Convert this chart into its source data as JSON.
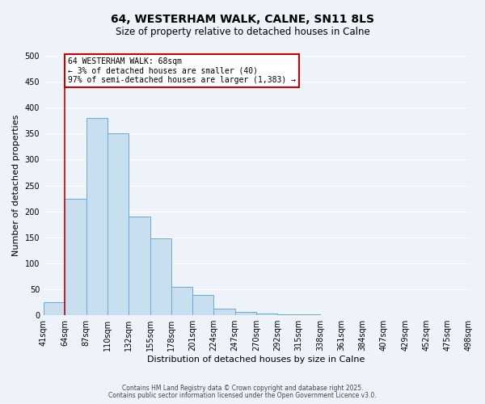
{
  "title": "64, WESTERHAM WALK, CALNE, SN11 8LS",
  "subtitle": "Size of property relative to detached houses in Calne",
  "xlabel": "Distribution of detached houses by size in Calne",
  "ylabel": "Number of detached properties",
  "bin_labels": [
    "41sqm",
    "64sqm",
    "87sqm",
    "110sqm",
    "132sqm",
    "155sqm",
    "178sqm",
    "201sqm",
    "224sqm",
    "247sqm",
    "270sqm",
    "292sqm",
    "315sqm",
    "338sqm",
    "361sqm",
    "384sqm",
    "407sqm",
    "429sqm",
    "452sqm",
    "475sqm",
    "498sqm"
  ],
  "bar_heights": [
    25,
    225,
    380,
    350,
    190,
    148,
    55,
    40,
    12,
    7,
    3,
    2,
    2,
    0,
    0,
    0,
    0,
    0,
    0,
    0
  ],
  "bar_color": "#c8dff0",
  "bar_edge_color": "#6aaad4",
  "vline_x_index": 1,
  "vline_color": "#cc0000",
  "ylim": [
    0,
    500
  ],
  "yticks": [
    0,
    50,
    100,
    150,
    200,
    250,
    300,
    350,
    400,
    450,
    500
  ],
  "annotation_text": "64 WESTERHAM WALK: 68sqm\n← 3% of detached houses are smaller (40)\n97% of semi-detached houses are larger (1,383) →",
  "annotation_box_color": "#ffffff",
  "annotation_box_edge": "#cc0000",
  "footer_line1": "Contains HM Land Registry data © Crown copyright and database right 2025.",
  "footer_line2": "Contains public sector information licensed under the Open Government Licence v3.0.",
  "bg_color": "#eef3fa",
  "plot_bg_color": "#eef3fa",
  "grid_color": "#ffffff",
  "title_fontsize": 10,
  "subtitle_fontsize": 8.5,
  "axis_label_fontsize": 8,
  "tick_fontsize": 7
}
